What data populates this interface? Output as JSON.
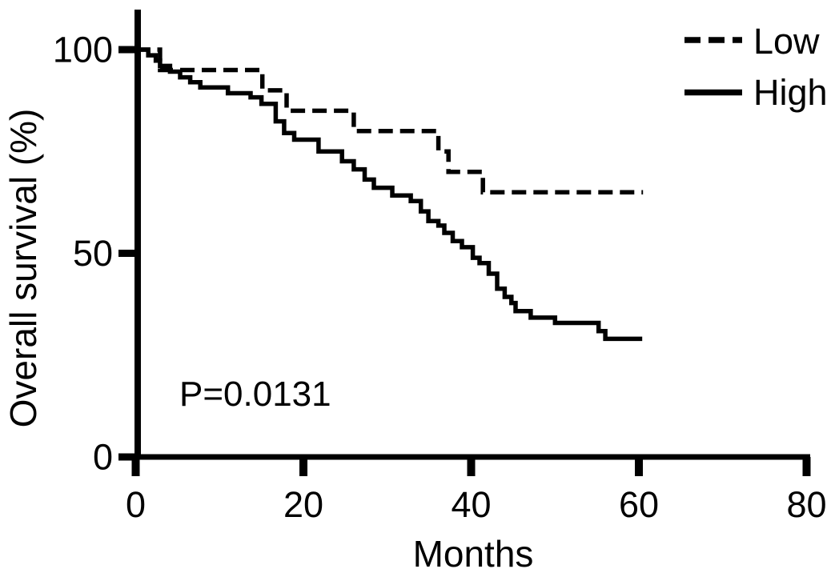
{
  "figure": {
    "background_color": "#ffffff",
    "line_color": "#000000"
  },
  "chart_data": {
    "type": "line",
    "subtype": "kaplan_meier_step",
    "title": "",
    "xlabel": "Months",
    "ylabel": "Overall survival (%)",
    "xlim": [
      0,
      80
    ],
    "ylim": [
      0,
      100
    ],
    "x_ticks": [
      0,
      20,
      40,
      60,
      80
    ],
    "y_ticks": [
      100,
      50,
      0
    ],
    "grid": false,
    "legend": {
      "position": "top-right",
      "entries": [
        {
          "label": "Low",
          "line_style": "dashed"
        },
        {
          "label": "High",
          "line_style": "solid"
        }
      ]
    },
    "annotation": {
      "text": "P=0.0131"
    },
    "series": [
      {
        "name": "Low",
        "line_style": "dashed",
        "points_months_percent": [
          [
            0,
            100
          ],
          [
            2.9,
            95
          ],
          [
            15.1,
            90
          ],
          [
            18,
            85
          ],
          [
            26,
            80
          ],
          [
            36.1,
            75
          ],
          [
            37.3,
            70
          ],
          [
            41.4,
            65
          ],
          [
            60.5,
            65
          ]
        ]
      },
      {
        "name": "High",
        "line_style": "solid",
        "points_months_percent": [
          [
            0,
            100
          ],
          [
            1.5,
            98.6
          ],
          [
            2.4,
            97.3
          ],
          [
            2.9,
            96
          ],
          [
            4.1,
            94.6
          ],
          [
            5.3,
            93.2
          ],
          [
            6.5,
            92
          ],
          [
            7.7,
            90.7
          ],
          [
            11,
            89.3
          ],
          [
            13.7,
            88.3
          ],
          [
            15,
            86.7
          ],
          [
            16.7,
            82.4
          ],
          [
            17.7,
            79.5
          ],
          [
            18.9,
            77.9
          ],
          [
            21.8,
            75
          ],
          [
            24.6,
            72.6
          ],
          [
            26,
            70.6
          ],
          [
            27.3,
            68.1
          ],
          [
            28.4,
            66.1
          ],
          [
            30.6,
            64.2
          ],
          [
            32.8,
            62.8
          ],
          [
            34,
            60.3
          ],
          [
            34.9,
            57.9
          ],
          [
            36.1,
            56.8
          ],
          [
            36.8,
            55
          ],
          [
            37.8,
            53
          ],
          [
            38.9,
            51.5
          ],
          [
            40.2,
            48.9
          ],
          [
            41,
            47.6
          ],
          [
            42.1,
            45
          ],
          [
            43.1,
            41.3
          ],
          [
            44,
            39.3
          ],
          [
            44.8,
            37.8
          ],
          [
            45.3,
            35.8
          ],
          [
            47.1,
            34.2
          ],
          [
            50,
            32.9
          ],
          [
            55.2,
            30.9
          ],
          [
            56,
            29
          ],
          [
            60.4,
            29
          ]
        ]
      }
    ]
  }
}
